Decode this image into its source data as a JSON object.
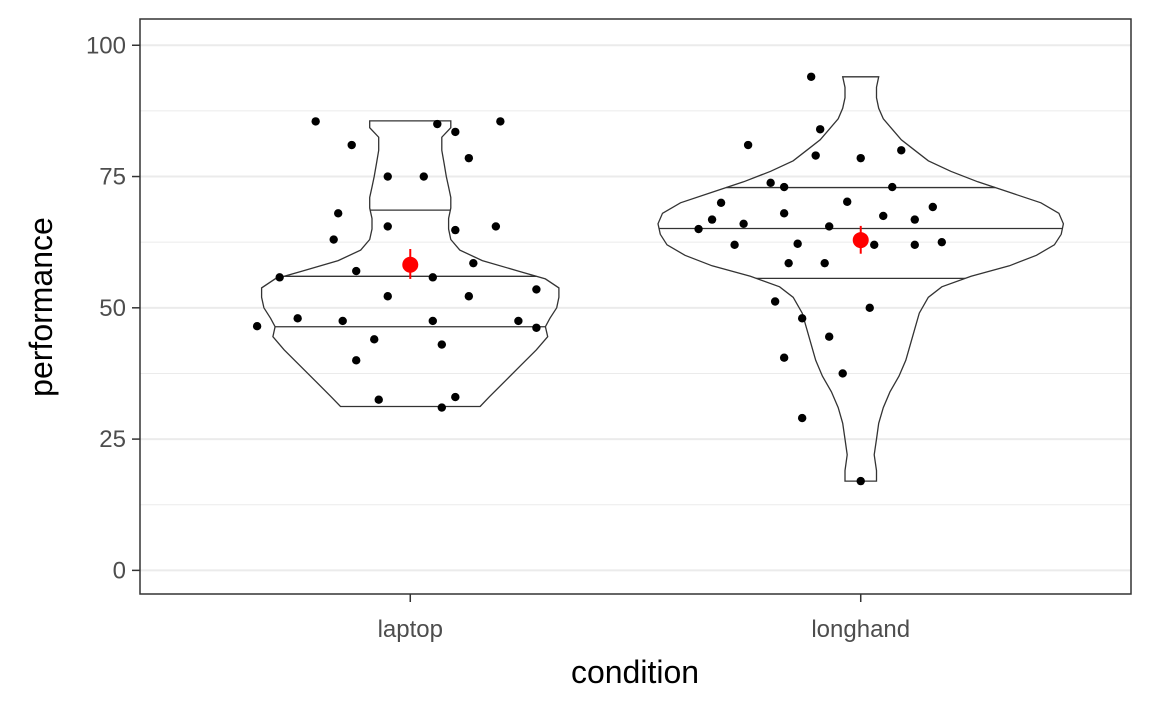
{
  "chart_data": {
    "type": "violin",
    "xlabel": "condition",
    "ylabel": "performance",
    "ylim": [
      -4.5,
      105
    ],
    "yticks": [
      0,
      25,
      50,
      75,
      100
    ],
    "ytick_labels": [
      "0",
      "25",
      "50",
      "75",
      "100"
    ],
    "grid": true,
    "legend": "none",
    "colors": {
      "points": "#000000",
      "mean": "#ff0000",
      "violin_outline": "#333333",
      "grid": "#ebebeb",
      "panel_border": "#333333"
    },
    "categories": [
      "laptop",
      "longhand"
    ],
    "groups": [
      {
        "name": "laptop",
        "mean": 58.2,
        "ci": [
          55.5,
          61.2
        ],
        "quantiles": [
          46.4,
          56.0,
          68.6
        ],
        "density": [
          [
            31.2,
            0.155
          ],
          [
            33,
            0.175
          ],
          [
            36,
            0.21
          ],
          [
            39,
            0.245
          ],
          [
            42,
            0.28
          ],
          [
            44.5,
            0.305
          ],
          [
            46.4,
            0.3
          ],
          [
            48,
            0.31
          ],
          [
            50,
            0.325
          ],
          [
            52,
            0.33
          ],
          [
            53.8,
            0.33
          ],
          [
            55.5,
            0.3
          ],
          [
            57,
            0.24
          ],
          [
            59,
            0.16
          ],
          [
            61,
            0.11
          ],
          [
            63,
            0.09
          ],
          [
            65,
            0.085
          ],
          [
            67,
            0.085
          ],
          [
            69,
            0.09
          ],
          [
            71,
            0.09
          ],
          [
            73,
            0.085
          ],
          [
            75,
            0.08
          ],
          [
            77.5,
            0.075
          ],
          [
            80,
            0.07
          ],
          [
            82.5,
            0.07
          ],
          [
            84.3,
            0.09
          ],
          [
            85.6,
            0.09
          ]
        ],
        "points": [
          [
            -0.34,
            46.5
          ],
          [
            -0.29,
            55.8
          ],
          [
            -0.25,
            48
          ],
          [
            -0.21,
            85.5
          ],
          [
            -0.15,
            47.5
          ],
          [
            -0.16,
            68
          ],
          [
            -0.17,
            63
          ],
          [
            -0.13,
            81
          ],
          [
            -0.12,
            57
          ],
          [
            -0.12,
            40
          ],
          [
            -0.08,
            44
          ],
          [
            -0.07,
            32.5
          ],
          [
            -0.05,
            75
          ],
          [
            -0.05,
            65.5
          ],
          [
            -0.05,
            52.2
          ],
          [
            0.03,
            75
          ],
          [
            0.05,
            55.8
          ],
          [
            0.06,
            85
          ],
          [
            0.05,
            47.5
          ],
          [
            0.07,
            31
          ],
          [
            0.1,
            64.8
          ],
          [
            0.07,
            43
          ],
          [
            0.1,
            33
          ],
          [
            0.1,
            83.5
          ],
          [
            0.13,
            78.5
          ],
          [
            0.13,
            52.2
          ],
          [
            0.14,
            58.5
          ],
          [
            0.19,
            65.5
          ],
          [
            0.2,
            85.5
          ],
          [
            0.24,
            47.5
          ],
          [
            0.28,
            46.2
          ],
          [
            0.28,
            53.5
          ]
        ]
      },
      {
        "name": "longhand",
        "mean": 62.9,
        "ci": [
          60.3,
          65.6
        ],
        "quantiles": [
          55.6,
          65.1,
          72.9
        ],
        "density": [
          [
            17,
            0.035
          ],
          [
            19,
            0.035
          ],
          [
            22,
            0.03
          ],
          [
            25,
            0.035
          ],
          [
            28,
            0.04
          ],
          [
            31,
            0.05
          ],
          [
            34,
            0.065
          ],
          [
            37,
            0.085
          ],
          [
            40,
            0.1
          ],
          [
            43,
            0.11
          ],
          [
            46,
            0.12
          ],
          [
            49,
            0.13
          ],
          [
            52,
            0.15
          ],
          [
            54,
            0.18
          ],
          [
            56,
            0.245
          ],
          [
            58,
            0.33
          ],
          [
            60,
            0.39
          ],
          [
            62,
            0.43
          ],
          [
            64,
            0.445
          ],
          [
            66,
            0.45
          ],
          [
            68,
            0.44
          ],
          [
            70,
            0.4
          ],
          [
            72,
            0.33
          ],
          [
            74,
            0.26
          ],
          [
            76,
            0.2
          ],
          [
            78,
            0.15
          ],
          [
            80,
            0.12
          ],
          [
            82,
            0.09
          ],
          [
            84,
            0.07
          ],
          [
            86,
            0.05
          ],
          [
            88,
            0.04
          ],
          [
            90,
            0.035
          ],
          [
            92,
            0.035
          ],
          [
            94,
            0.04
          ]
        ],
        "points": [
          [
            -0.36,
            65
          ],
          [
            -0.33,
            66.8
          ],
          [
            -0.31,
            70
          ],
          [
            -0.28,
            62
          ],
          [
            -0.26,
            66
          ],
          [
            -0.25,
            81
          ],
          [
            -0.2,
            73.8
          ],
          [
            -0.19,
            51.2
          ],
          [
            -0.17,
            73
          ],
          [
            -0.17,
            68
          ],
          [
            -0.17,
            40.5
          ],
          [
            -0.16,
            58.5
          ],
          [
            -0.14,
            62.2
          ],
          [
            -0.13,
            48
          ],
          [
            -0.13,
            29
          ],
          [
            -0.11,
            94
          ],
          [
            -0.1,
            79
          ],
          [
            -0.09,
            84
          ],
          [
            -0.08,
            58.5
          ],
          [
            -0.07,
            44.5
          ],
          [
            -0.07,
            65.5
          ],
          [
            -0.04,
            37.5
          ],
          [
            -0.03,
            70.2
          ],
          [
            0,
            78.5
          ],
          [
            0.02,
            50
          ],
          [
            0.03,
            62
          ],
          [
            0.12,
            62
          ],
          [
            0.05,
            67.5
          ],
          [
            0.07,
            73
          ],
          [
            0.09,
            80
          ],
          [
            0.12,
            66.8
          ],
          [
            0.16,
            69.2
          ],
          [
            0.18,
            62.5
          ],
          [
            0,
            17
          ]
        ]
      }
    ]
  }
}
